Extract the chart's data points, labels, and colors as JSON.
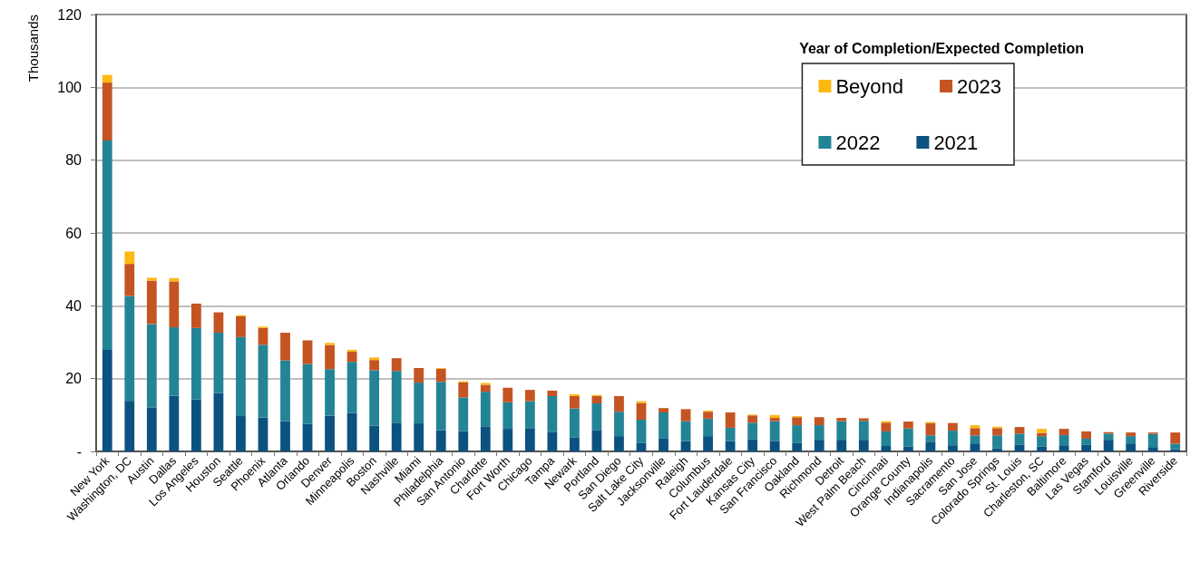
{
  "chart_data": {
    "type": "bar",
    "stacked": true,
    "ylabel": "Thousands",
    "legend_title": "Year of Completion/Expected Completion",
    "legend": "top right",
    "grid": "y",
    "categories": [
      "New York",
      "Washington, DC",
      "Austin",
      "Dallas",
      "Los Angeles",
      "Houston",
      "Seattle",
      "Phoenix",
      "Atlanta",
      "Orlando",
      "Denver",
      "Minneapolis",
      "Boston",
      "Nashville",
      "Miami",
      "Philadelphia",
      "San Antonio",
      "Charlotte",
      "Fort Worth",
      "Chicago",
      "Tampa",
      "Newark",
      "Portland",
      "San Diego",
      "Salt Lake City",
      "Jacksonville",
      "Raleigh",
      "Columbus",
      "Fort Lauderdale",
      "Kansas City",
      "San Francisco",
      "Oakland",
      "Richmond",
      "Detroit",
      "West Palm Beach",
      "Cincinnati",
      "Orange County",
      "Indianapolis",
      "Sacramento",
      "San Jose",
      "Colorado Springs",
      "St. Louis",
      "Charleston, SC",
      "Baltimore",
      "Las Vegas",
      "Stamford",
      "Louisville",
      "Greenville",
      "Riverside"
    ],
    "ylim": [
      0,
      120
    ],
    "yticks": [
      {
        "value": 0,
        "label": "-"
      },
      20,
      40,
      60,
      80,
      100,
      120
    ],
    "series": [
      {
        "name": "2021",
        "color": "#0b5280",
        "values": [
          27.9,
          13.9,
          12.1,
          15.3,
          14.3,
          16.0,
          9.7,
          9.3,
          8.3,
          7.6,
          9.8,
          10.5,
          7.1,
          7.9,
          7.7,
          5.8,
          5.6,
          6.9,
          6.2,
          6.4,
          5.4,
          3.9,
          5.9,
          4.2,
          2.4,
          3.5,
          2.8,
          4.2,
          2.8,
          3.4,
          2.9,
          2.4,
          3.2,
          3.2,
          3.2,
          1.5,
          1.4,
          2.7,
          1.7,
          2.2,
          0.9,
          1.9,
          1.4,
          1.7,
          1.9,
          3.2,
          2.2,
          1.2,
          0.6
        ]
      },
      {
        "name": "2022",
        "color": "#238496",
        "values": [
          57.5,
          28.8,
          22.9,
          18.8,
          19.6,
          16.6,
          21.7,
          20.0,
          16.7,
          16.4,
          12.8,
          14.1,
          15.2,
          14.2,
          11.2,
          13.3,
          9.2,
          9.5,
          7.3,
          7.4,
          9.8,
          7.9,
          7.3,
          6.7,
          6.3,
          7.2,
          5.5,
          4.8,
          3.7,
          4.5,
          5.4,
          4.8,
          4.0,
          5.1,
          5.2,
          4.0,
          4.9,
          1.7,
          4.0,
          2.2,
          3.5,
          3.0,
          2.8,
          2.8,
          1.6,
          1.7,
          2.0,
          3.6,
          1.5
        ]
      },
      {
        "name": "2023",
        "color": "#c55423",
        "values": [
          15.9,
          8.8,
          11.9,
          12.6,
          6.7,
          5.6,
          5.7,
          4.6,
          7.6,
          6.5,
          6.6,
          2.8,
          2.8,
          3.5,
          4.0,
          3.6,
          4.2,
          1.9,
          4.0,
          3.1,
          1.5,
          3.4,
          2.0,
          4.3,
          4.6,
          1.2,
          3.3,
          1.9,
          4.2,
          2.0,
          0.9,
          2.2,
          2.2,
          0.9,
          0.7,
          2.4,
          1.9,
          3.4,
          2.1,
          2.0,
          2.0,
          1.8,
          0.9,
          1.7,
          2.0,
          0.4,
          1.0,
          0.4,
          3.1
        ]
      },
      {
        "name": "Beyond",
        "color": "#fdb813",
        "values": [
          2.1,
          3.4,
          0.8,
          0.9,
          null,
          null,
          0.3,
          0.4,
          null,
          null,
          0.6,
          0.5,
          0.7,
          null,
          null,
          0.2,
          0.3,
          0.5,
          null,
          null,
          null,
          0.5,
          0.3,
          null,
          0.5,
          null,
          null,
          0.3,
          null,
          0.2,
          0.8,
          0.3,
          null,
          null,
          null,
          0.4,
          null,
          0.3,
          null,
          0.8,
          0.4,
          null,
          1.1,
          null,
          null,
          null,
          null,
          null,
          null
        ]
      }
    ]
  }
}
